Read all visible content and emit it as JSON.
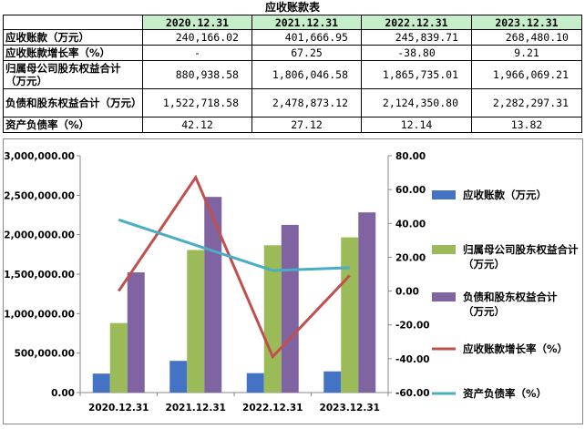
{
  "title": "应收账款表",
  "table": {
    "columns": [
      "2020.12.31",
      "2021.12.31",
      "2022.12.31",
      "2023.12.31"
    ],
    "rows": [
      {
        "label": "应收账款（万元）",
        "values": [
          "240,166.02",
          "401,666.95",
          "245,839.71",
          "268,480.10"
        ]
      },
      {
        "label": "应收账款增长率（%）",
        "values": [
          "-",
          "67.25",
          "-38.80",
          "9.21"
        ]
      },
      {
        "label": "归属母公司股东权益合计（万元）",
        "values": [
          "880,938.58",
          "1,806,046.58",
          "1,865,735.01",
          "1,966,069.21"
        ]
      },
      {
        "label": "负债和股东权益合计（万元）",
        "values": [
          "1,522,718.58",
          "2,478,873.12",
          "2,124,350.80",
          "2,282,297.31"
        ]
      },
      {
        "label": "资产负债率（%）",
        "values": [
          "42.12",
          "27.12",
          "12.14",
          "13.82"
        ]
      }
    ]
  },
  "chart_data": {
    "type": "bar",
    "categories": [
      "2020.12.31",
      "2021.12.31",
      "2022.12.31",
      "2023.12.31"
    ],
    "left_axis": {
      "ylim": [
        0,
        3000000
      ],
      "step": 500000,
      "tick_labels": [
        "0.00",
        "500,000.00",
        "1,000,000.00",
        "1,500,000.00",
        "2,000,000.00",
        "2,500,000.00",
        "3,000,000.00"
      ]
    },
    "right_axis": {
      "ylim": [
        -60,
        80
      ],
      "step": 20,
      "tick_labels": [
        "-60.00",
        "-40.00",
        "-20.00",
        "0.00",
        "20.00",
        "40.00",
        "60.00",
        "80.00"
      ]
    },
    "series": [
      {
        "name": "应收账款（万元）",
        "type": "bar",
        "axis": "left",
        "color": "#4472c4",
        "values": [
          240166.02,
          401666.95,
          245839.71,
          268480.1
        ]
      },
      {
        "name": "归属母公司股东权益合计（万元）",
        "type": "bar",
        "axis": "left",
        "color": "#9bbb59",
        "values": [
          880938.58,
          1806046.58,
          1865735.01,
          1966069.21
        ]
      },
      {
        "name": "负债和股东权益合计（万元）",
        "type": "bar",
        "axis": "left",
        "color": "#8064a2",
        "values": [
          1522718.58,
          2478873.12,
          2124350.8,
          2282297.31
        ]
      },
      {
        "name": "应收账款增长率（%）",
        "type": "line",
        "axis": "right",
        "color": "#c0504d",
        "values": [
          0,
          67.25,
          -38.8,
          9.21
        ]
      },
      {
        "name": "资产负债率（%）",
        "type": "line",
        "axis": "right",
        "color": "#4bacc6",
        "values": [
          42.12,
          27.12,
          12.14,
          13.82
        ]
      }
    ],
    "legend_position": "right",
    "grid": false
  }
}
